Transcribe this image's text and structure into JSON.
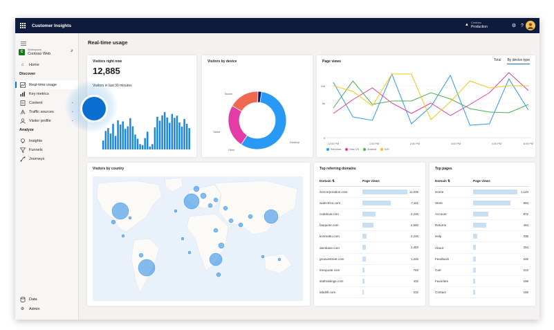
{
  "app": {
    "title": "Customer Insights",
    "env_org": "Contoso",
    "env_name": "Production"
  },
  "icons": {
    "waffle": "waffle-icon",
    "environment": "environment-icon",
    "settings": "gear-icon",
    "help": "help-icon",
    "avatar": "avatar-icon"
  },
  "sidebar": {
    "workspace_label": "Workspace",
    "workspace_name": "Contoso Web",
    "workspace_badge": "C",
    "items": [
      {
        "label": "Home",
        "icon": "home-icon"
      },
      {
        "section": "Discover"
      },
      {
        "label": "Real-time usage",
        "icon": "realtime-icon",
        "active": true
      },
      {
        "label": "Key metrics",
        "icon": "metrics-icon"
      },
      {
        "label": "Content",
        "icon": "content-icon",
        "expandable": true
      },
      {
        "label": "Traffic sources",
        "icon": "traffic-icon",
        "expandable": true
      },
      {
        "label": "Visitor profile",
        "icon": "visitor-icon",
        "expandable": true
      },
      {
        "section": "Analyze"
      },
      {
        "label": "Insights",
        "icon": "insights-icon"
      },
      {
        "label": "Funnels",
        "icon": "funnel-icon"
      },
      {
        "label": "Journeys",
        "icon": "journey-icon"
      }
    ],
    "bottom": [
      {
        "label": "Data",
        "icon": "database-icon"
      },
      {
        "label": "Admin",
        "icon": "gear-icon"
      }
    ]
  },
  "page": {
    "title": "Real-time usage"
  },
  "visitors_now": {
    "title": "Visitors right now",
    "count": "12,885",
    "caption": "Visitors in last 30 minutes",
    "ytick_top": "15k",
    "ytick_mid": "7.5k"
  },
  "device": {
    "title": "Visitors by device",
    "legend": [
      "Desktop",
      "Mobile",
      "Tablet",
      "Other"
    ],
    "colors": [
      "#2899f5",
      "#e43ba6",
      "#ef6950",
      "#0f1b6e"
    ]
  },
  "pageviews": {
    "title": "Page views",
    "tab_total": "Total",
    "tab_device": "By device type",
    "ytick_top": "10k",
    "ytick_mid": "5k",
    "ytick_bottom": "0",
    "xticks": [
      "12:00 PM",
      "1:00 PM",
      "2:00 PM",
      "3:00 PM",
      "4:00 PM",
      "6:00 PM"
    ],
    "legend": [
      "Windows",
      "Mac OS",
      "Android",
      "iOS"
    ],
    "colors": [
      "#2899f5",
      "#e43ba6",
      "#4caf50",
      "#f2c811"
    ]
  },
  "country": {
    "title": "Visitors by country"
  },
  "domains": {
    "title": "Top referring domains",
    "col_domain": "Domain",
    "col_views": "Page views",
    "rows": [
      {
        "name": "zencorporation.com",
        "value": "11,029",
        "frac": 1.0
      },
      {
        "name": "isalectrics.com",
        "value": "7,112",
        "frac": 0.64
      },
      {
        "name": "codshow.com",
        "value": "2,245",
        "frac": 0.3
      },
      {
        "name": "fasquote.com",
        "value": "2,560",
        "frac": 0.25
      },
      {
        "name": "konmattu.com",
        "value": "2,245",
        "frac": 0.1
      },
      {
        "name": "dambase.com",
        "value": "1,453",
        "frac": 0.08
      },
      {
        "name": "groovestreet.com",
        "value": "1,245",
        "frac": 0.07
      },
      {
        "name": "treequote.com",
        "value": "763",
        "frac": 0.05
      },
      {
        "name": "statholdings.com",
        "value": "432",
        "frac": 0.04
      },
      {
        "name": "labdrill.com",
        "value": "232",
        "frac": 0.03
      }
    ]
  },
  "pages": {
    "title": "Top pages",
    "col_domain": "Domain",
    "col_views": "Page views",
    "rows": [
      {
        "name": "Home",
        "value": "1,123",
        "frac": 1.0
      },
      {
        "name": "Store",
        "value": "984",
        "frac": 0.85
      },
      {
        "name": "Account",
        "value": "872",
        "frac": 0.35
      },
      {
        "name": "Returns",
        "value": "464",
        "frac": 0.3
      },
      {
        "name": "Help",
        "value": "335",
        "frac": 0.09
      },
      {
        "name": "About",
        "value": "254",
        "frac": 0.07
      },
      {
        "name": "Feedback",
        "value": "246",
        "frac": 0.06
      },
      {
        "name": "Cart",
        "value": "213",
        "frac": 0.06
      },
      {
        "name": "Favorites",
        "value": "198",
        "frac": 0.05
      },
      {
        "name": "Contact",
        "value": "155",
        "frac": 0.05
      }
    ]
  },
  "chart_data": [
    {
      "type": "bar",
      "title": "Visitors right now",
      "ylim": [
        0,
        15000
      ],
      "values": [
        2500,
        5200,
        6000,
        4500,
        7200,
        3800,
        8200,
        7000,
        7900,
        5800,
        6500,
        8800,
        6500,
        4200,
        3000,
        1500,
        1200,
        3200,
        5000,
        800,
        1500,
        6200,
        9200,
        8100,
        9600,
        10500,
        9000,
        7500,
        10000,
        8900,
        9500,
        7600,
        6400,
        8600,
        7200,
        6000
      ]
    },
    {
      "type": "pie",
      "title": "Visitors by device",
      "categories": [
        "Desktop",
        "Mobile",
        "Tablet",
        "Other"
      ],
      "values": [
        57,
        24,
        17,
        2
      ]
    },
    {
      "type": "line",
      "title": "Page views",
      "ylim": [
        0,
        10000
      ],
      "x": [
        "12:00 PM",
        "",
        "1:00 PM",
        "",
        "2:00 PM",
        "",
        "3:00 PM",
        "",
        "4:00 PM",
        "",
        "6:00 PM"
      ],
      "series": [
        {
          "name": "Windows",
          "values": [
            8000,
            3000,
            2500,
            9200,
            2000,
            4500,
            9000,
            1800,
            2000,
            8500,
            4000
          ]
        },
        {
          "name": "Mac OS",
          "values": [
            3500,
            5500,
            7200,
            5000,
            3500,
            5000,
            3200,
            4800,
            6500,
            9400,
            6800
          ]
        },
        {
          "name": "Android",
          "values": [
            4300,
            8200,
            4800,
            5300,
            5300,
            6500,
            5600,
            4200,
            3700,
            3600,
            4800
          ]
        },
        {
          "name": "iOS",
          "values": [
            7500,
            6700,
            4600,
            9200,
            9200,
            2600,
            5200,
            8200,
            7200,
            7500,
            7500
          ]
        }
      ]
    },
    {
      "type": "scatter",
      "title": "Visitors by country",
      "note_values": [
        {
          "region": "North America",
          "size": 3
        },
        {
          "region": "South America",
          "size": 3
        },
        {
          "region": "Europe",
          "size": 2
        },
        {
          "region": "Asia",
          "size": 3
        },
        {
          "region": "Africa",
          "size": 2
        }
      ]
    }
  ]
}
